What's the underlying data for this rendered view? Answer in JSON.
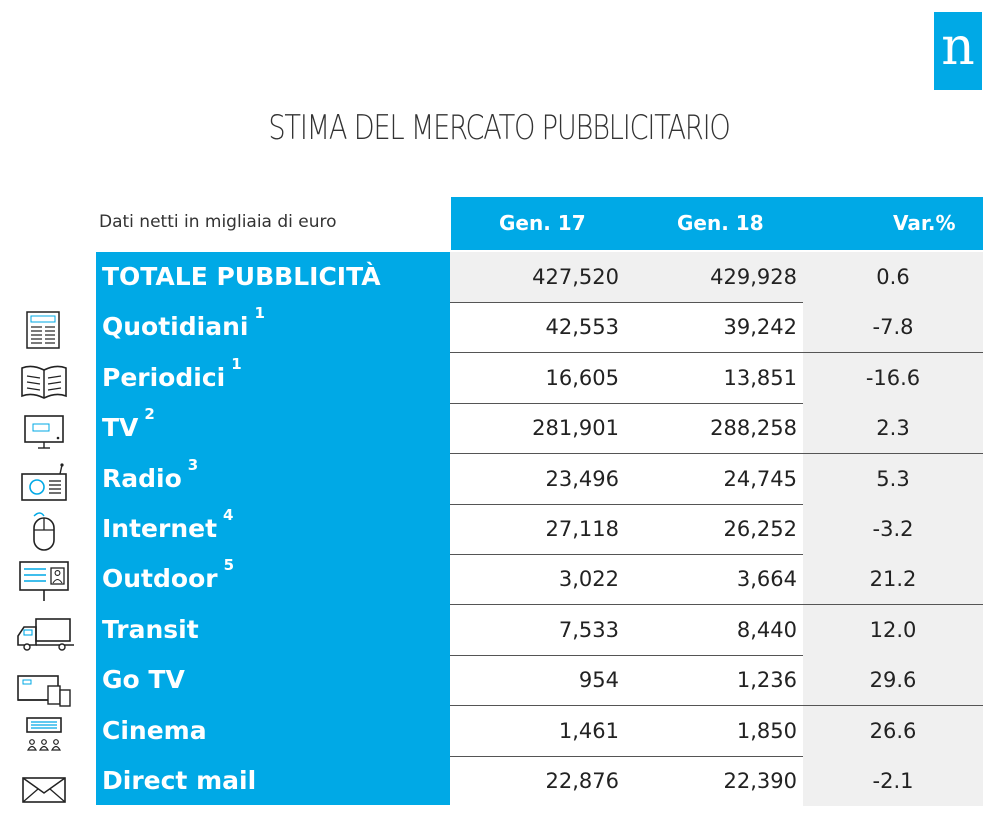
{
  "logo": {
    "letter": "n"
  },
  "title": "STIMA DEL MERCATO PUBBLICITARIO",
  "subtitle": "Dati netti in migliaia di euro",
  "headers": {
    "gen17": "Gen. 17",
    "gen18": "Gen. 18",
    "var": "Var.%"
  },
  "rows": [
    {
      "label": "TOTALE PUBBLICITÀ",
      "sup": "",
      "gen17": "427,520",
      "gen18": "429,928",
      "var": "0.6",
      "icon": ""
    },
    {
      "label": "Quotidiani",
      "sup": "1",
      "gen17": "42,553",
      "gen18": "39,242",
      "var": "-7.8",
      "icon": "newspaper-icon"
    },
    {
      "label": "Periodici",
      "sup": "1",
      "gen17": "16,605",
      "gen18": "13,851",
      "var": "-16.6",
      "icon": "open-book-icon"
    },
    {
      "label": "TV",
      "sup": "2",
      "gen17": "281,901",
      "gen18": "288,258",
      "var": "2.3",
      "icon": "tv-news-icon"
    },
    {
      "label": "Radio",
      "sup": "3",
      "gen17": "23,496",
      "gen18": "24,745",
      "var": "5.3",
      "icon": "radio-icon"
    },
    {
      "label": "Internet",
      "sup": "4",
      "gen17": "27,118",
      "gen18": "26,252",
      "var": "-3.2",
      "icon": "mouse-icon"
    },
    {
      "label": "Outdoor",
      "sup": "5",
      "gen17": "3,022",
      "gen18": "3,664",
      "var": "21.2",
      "icon": "billboard-icon"
    },
    {
      "label": "Transit",
      "sup": "",
      "gen17": "7,533",
      "gen18": "8,440",
      "var": "12.0",
      "icon": "truck-icon"
    },
    {
      "label": "Go TV",
      "sup": "",
      "gen17": "954",
      "gen18": "1,236",
      "var": "29.6",
      "icon": "devices-icon"
    },
    {
      "label": "Cinema",
      "sup": "",
      "gen17": "1,461",
      "gen18": "1,850",
      "var": "26.6",
      "icon": "cinema-icon"
    },
    {
      "label": "Direct mail",
      "sup": "",
      "gen17": "22,876",
      "gen18": "22,390",
      "var": "-2.1",
      "icon": "envelope-icon"
    }
  ],
  "colors": {
    "accent": "#00a9e6",
    "shade": "#f0f0f0"
  }
}
